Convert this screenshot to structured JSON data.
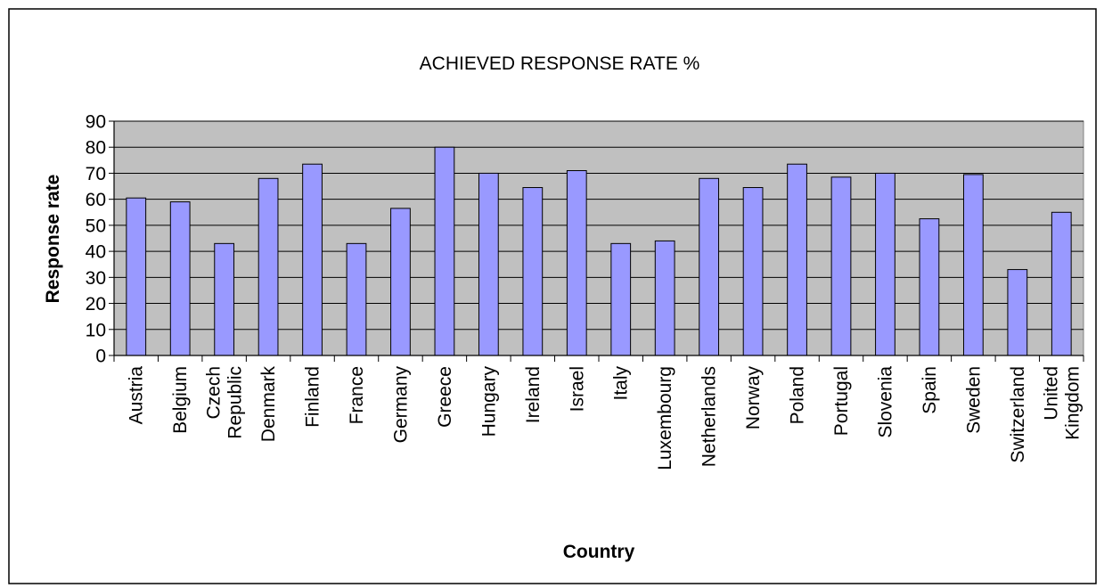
{
  "chart_data": {
    "type": "bar",
    "title": "ACHIEVED RESPONSE RATE %",
    "xlabel": "Country",
    "ylabel": "Response rate",
    "ylim": [
      0,
      90
    ],
    "yticks": [
      0,
      10,
      20,
      30,
      40,
      50,
      60,
      70,
      80,
      90
    ],
    "grid": true,
    "legend": "none",
    "categories": [
      [
        "Austria"
      ],
      [
        "Belgium"
      ],
      [
        "Czech",
        "Republic"
      ],
      [
        "Denmark"
      ],
      [
        "Finland"
      ],
      [
        "France"
      ],
      [
        "Germany"
      ],
      [
        "Greece"
      ],
      [
        "Hungary"
      ],
      [
        "Ireland"
      ],
      [
        "Israel"
      ],
      [
        "Italy"
      ],
      [
        "Luxembourg"
      ],
      [
        "Netherlands"
      ],
      [
        "Norway"
      ],
      [
        "Poland"
      ],
      [
        "Portugal"
      ],
      [
        "Slovenia"
      ],
      [
        "Spain"
      ],
      [
        "Sweden"
      ],
      [
        "Switzerland"
      ],
      [
        "United",
        "Kingdom"
      ]
    ],
    "values": [
      60.5,
      59,
      43,
      68,
      73.5,
      43,
      56.5,
      80,
      70,
      64.5,
      71,
      43,
      44,
      68,
      64.5,
      73.5,
      68.5,
      70,
      52.5,
      69.5,
      33,
      55
    ],
    "colors": {
      "bar_fill": "#9999ff",
      "plot_background": "#c0c0c0",
      "gridline": "#000000"
    }
  }
}
